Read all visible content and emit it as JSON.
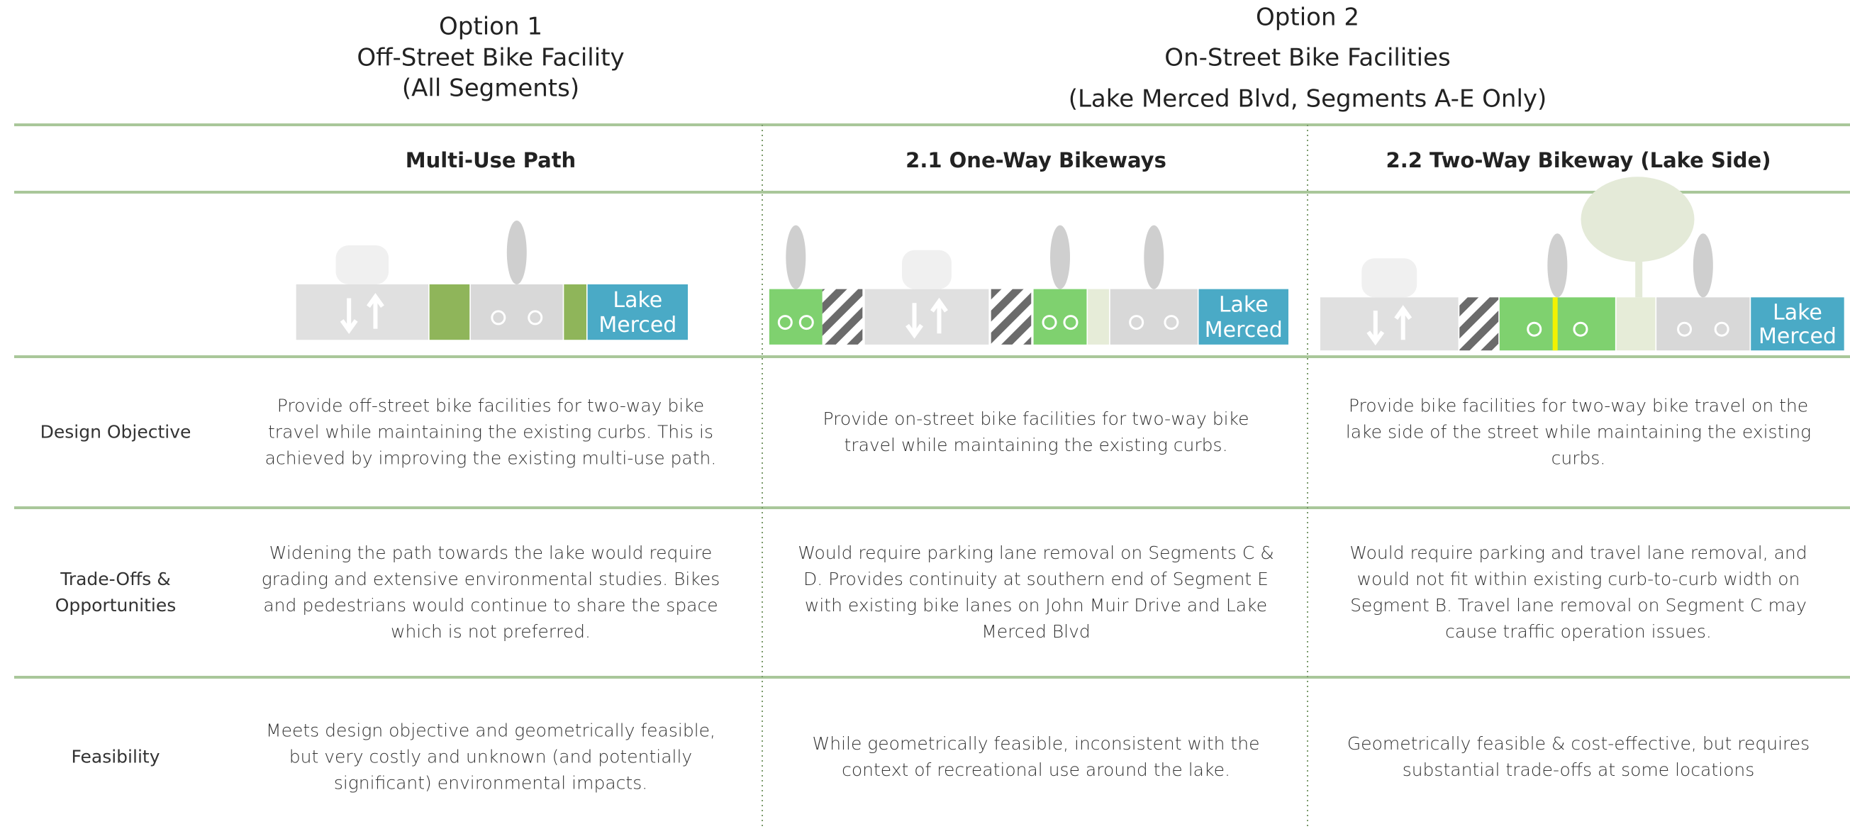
{
  "options": [
    {
      "lines": [
        "Option 1",
        "Off-Street Bike Facility",
        "(All Segments)"
      ]
    },
    {
      "lines": [
        "Option 2",
        "On-Street Bike Facilities",
        "(Lake Merced Blvd, Segments A-E Only)"
      ]
    }
  ],
  "columns": [
    {
      "heading": "Multi-Use Path",
      "lake_label": [
        "Lake",
        "Merced"
      ]
    },
    {
      "heading": "2.1 One-Way Bikeways",
      "lake_label": [
        "Lake",
        "Merced"
      ]
    },
    {
      "heading": "2.2 Two-Way Bikeway (Lake Side)",
      "lake_label": [
        "Lake",
        "Merced"
      ]
    }
  ],
  "rows": [
    {
      "label": "Design Objective",
      "cells": [
        "Provide off-street bike facilities for two-way bike travel while maintaining the existing curbs. This is achieved by improving the existing multi-use path.",
        "Provide on-street bike facilities for two-way bike travel while maintaining the existing curbs.",
        "Provide bike facilities for two-way bike travel on the lake side of the street while maintaining the existing curbs."
      ]
    },
    {
      "label": "Trade-Offs & Opportunities",
      "cells": [
        "Widening the path towards the lake would require grading and extensive environmental studies. Bikes and pedestrians would continue to share the space which is not preferred.",
        "Would require parking lane removal on Segments C & D. Provides continuity at southern end of Segment E with existing bike lanes on John Muir Drive and Lake Merced Blvd",
        "Would require parking and travel lane removal, and would not fit within existing curb-to-curb width on Segment B. Travel lane removal on Segment C may cause traffic operation issues."
      ]
    },
    {
      "label": "Feasibility",
      "cells": [
        "Meets design objective and geometrically feasible, but very costly and unknown (and potentially significant) environmental impacts.",
        "While geometrically feasible, inconsistent with the context of recreational use around the lake.",
        "Geometrically feasible & cost-effective, but requires substantial trade-offs at some locations"
      ]
    }
  ]
}
